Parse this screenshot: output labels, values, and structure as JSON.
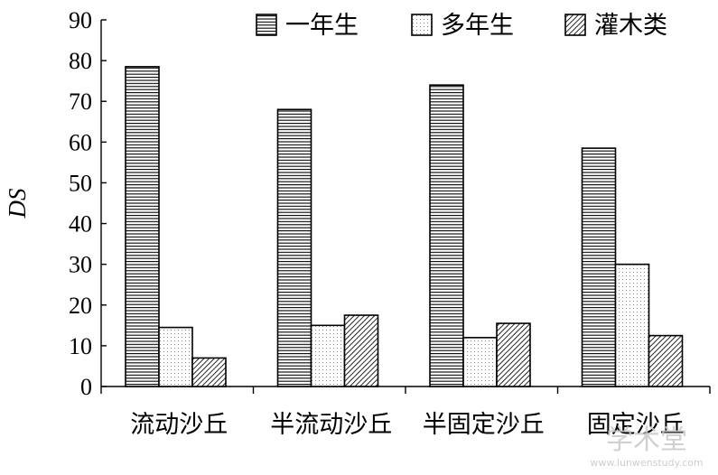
{
  "chart_data": {
    "type": "bar",
    "title": "",
    "xlabel": "",
    "ylabel": "DS",
    "ylim": [
      0,
      90
    ],
    "yticks": [
      0,
      10,
      20,
      30,
      40,
      50,
      60,
      70,
      80,
      90
    ],
    "categories": [
      "流动沙丘",
      "半流动沙丘",
      "半固定沙丘",
      "固定沙丘"
    ],
    "series": [
      {
        "name": "一年生",
        "values": [
          78.5,
          68,
          74,
          58.5
        ],
        "pattern": "horizontal-lines"
      },
      {
        "name": "多年生",
        "values": [
          14.5,
          15,
          12,
          30
        ],
        "pattern": "dots"
      },
      {
        "name": "灌木类",
        "values": [
          7,
          17.5,
          15.5,
          12.5
        ],
        "pattern": "diagonal-lines"
      }
    ],
    "legend_position": "top-right",
    "grid": false
  },
  "watermark": {
    "main": "学术堂",
    "sub": "www.lunwenstudy.com"
  }
}
